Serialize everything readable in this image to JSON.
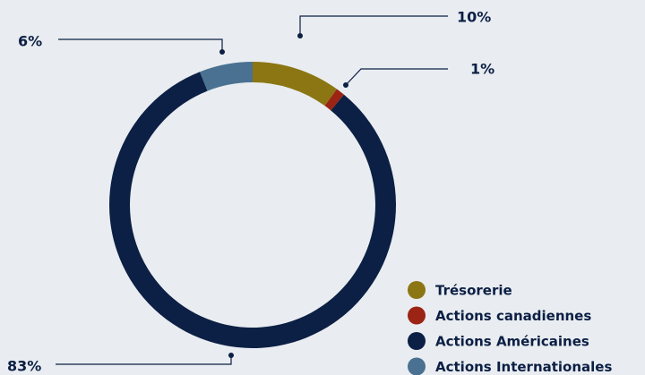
{
  "chart_data": {
    "type": "donut",
    "categories": [
      "Trésorerie",
      "Actions canadiennes",
      "Actions Américaines",
      "Actions Internationales"
    ],
    "values": [
      10,
      1,
      83,
      6
    ],
    "value_labels": [
      "10%",
      "1%",
      "83%",
      "6%"
    ],
    "colors": [
      "#8b7613",
      "#9b2414",
      "#0c1f44",
      "#4a7191"
    ],
    "legend": "bottom-right"
  }
}
